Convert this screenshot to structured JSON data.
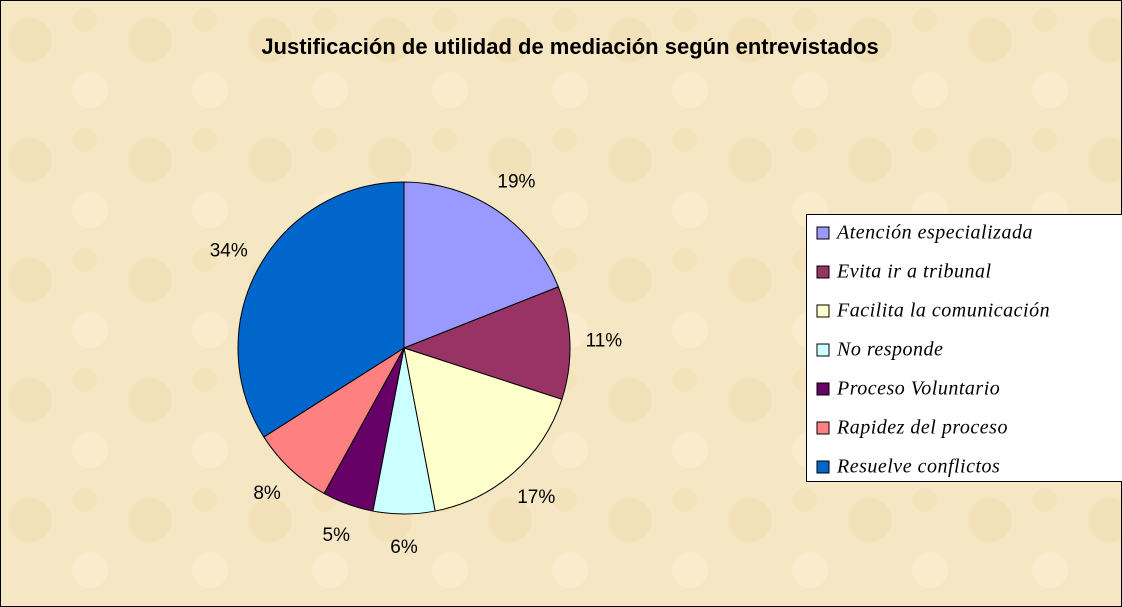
{
  "chart_data": {
    "type": "pie",
    "title": "Justificación de utilidad de mediación según entrevistados",
    "categories": [
      "Atención especializada",
      "Evita ir a tribunal",
      "Facilita la comunicación",
      "No responde",
      "Proceso Voluntario",
      "Rapidez del proceso",
      "Resuelve conflictos"
    ],
    "values": [
      19,
      11,
      17,
      6,
      5,
      8,
      34
    ],
    "value_labels": [
      "19%",
      "11%",
      "17%",
      "6%",
      "5%",
      "8%",
      "34%"
    ],
    "colors": [
      "#9999ff",
      "#993366",
      "#ffffcc",
      "#ccffff",
      "#660066",
      "#ff8080",
      "#0066cc"
    ],
    "legend": "right"
  }
}
